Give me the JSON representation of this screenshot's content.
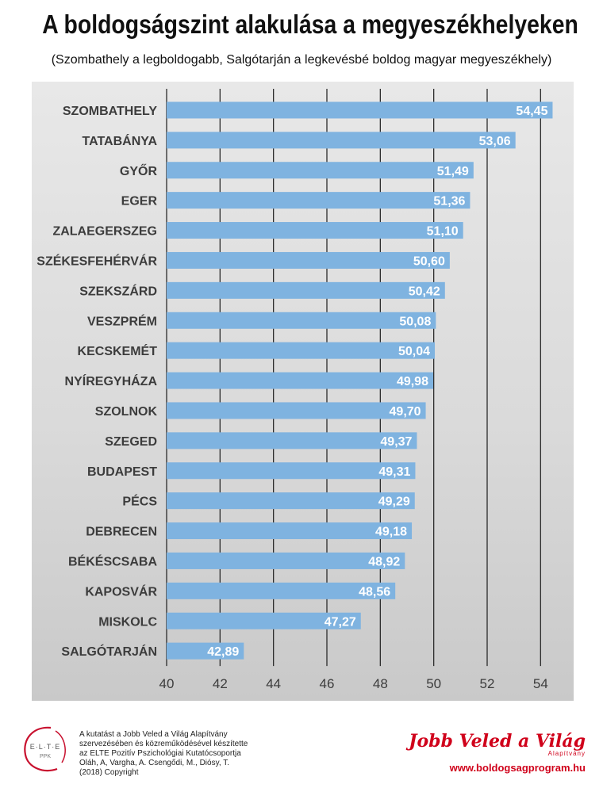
{
  "chart_data": {
    "type": "bar",
    "orientation": "horizontal",
    "title": "A boldogságszint alakulása a megyeszékhelyeken",
    "subtitle": "(Szombathely a legboldogabb, Salgótarján a legkevésbé boldog magyar megyeszékhely)",
    "categories": [
      "SZOMBATHELY",
      "TATABÁNYA",
      "GYŐR",
      "EGER",
      "ZALAEGERSZEG",
      "SZÉKESFEHÉRVÁR",
      "SZEKSZÁRD",
      "VESZPRÉM",
      "KECSKEMÉT",
      "NYÍREGYHÁZA",
      "SZOLNOK",
      "SZEGED",
      "BUDAPEST",
      "PÉCS",
      "DEBRECEN",
      "BÉKÉSCSABA",
      "KAPOSVÁR",
      "MISKOLC",
      "SALGÓTARJÁN"
    ],
    "values": [
      54.45,
      53.06,
      51.49,
      51.36,
      51.1,
      50.6,
      50.42,
      50.08,
      50.04,
      49.98,
      49.7,
      49.37,
      49.31,
      49.29,
      49.18,
      48.92,
      48.56,
      47.27,
      42.89
    ],
    "value_labels": [
      "54,45",
      "53,06",
      "51,49",
      "51,36",
      "51,10",
      "50,60",
      "50,42",
      "50,08",
      "50,04",
      "49,98",
      "49,70",
      "49,37",
      "49,31",
      "49,29",
      "49,18",
      "48,92",
      "48,56",
      "47,27",
      "42,89"
    ],
    "xlim": [
      40,
      55
    ],
    "xticks": [
      40,
      42,
      44,
      46,
      48,
      50,
      52,
      54
    ],
    "grid": true,
    "bar_color": "#7fb3e0",
    "grid_color": "#2b2b2b"
  },
  "footer": {
    "logo_top": "E·L·T·E",
    "logo_bottom": "PPK",
    "credit_lines": [
      "A kutatást a Jobb Veled a Világ Alapítvány",
      "szervezésében és közreműködésével készítette",
      "az ELTE Pozitív Pszichológiai Kutatócsoportja",
      "Oláh, A, Vargha, A. Csengődi, M., Diósy, T.",
      "(2018) Copyright"
    ],
    "brand_name": "Jobb Veled a Világ",
    "brand_sub": "Alapítvány",
    "website": "www.boldogsagprogram.hu"
  },
  "colors": {
    "brand_red": "#d0021b"
  }
}
